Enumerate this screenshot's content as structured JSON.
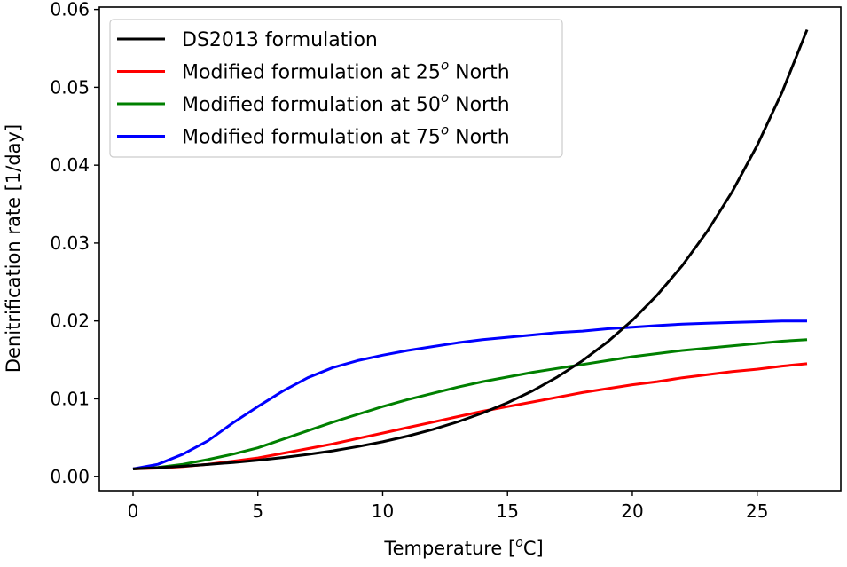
{
  "chart_data": {
    "type": "line",
    "title": "",
    "xlabel": "Temperature [",
    "xlabel_super": "o",
    "xlabel_tail": "C]",
    "ylabel": "Denitrification rate [1/day]",
    "xlim": [
      -1.35,
      28.35
    ],
    "ylim": [
      -0.0018,
      0.0603
    ],
    "xticks": [
      0,
      5,
      10,
      15,
      20,
      25
    ],
    "xtick_labels": [
      "0",
      "5",
      "10",
      "15",
      "20",
      "25"
    ],
    "yticks": [
      0,
      0.01,
      0.02,
      0.03,
      0.04,
      0.05,
      0.06
    ],
    "ytick_labels": [
      "0.00",
      "0.01",
      "0.02",
      "0.03",
      "0.04",
      "0.05",
      "0.06"
    ],
    "grid": false,
    "legend_position": "top-left",
    "x": [
      0,
      1,
      2,
      3,
      4,
      5,
      6,
      7,
      8,
      9,
      10,
      11,
      12,
      13,
      14,
      15,
      16,
      17,
      18,
      19,
      20,
      21,
      22,
      23,
      24,
      25,
      26,
      27
    ],
    "series": [
      {
        "name": "DS2013 formulation",
        "color": "#000000",
        "values": [
          0.001,
          0.00116,
          0.00135,
          0.00157,
          0.00182,
          0.00212,
          0.00246,
          0.00286,
          0.00332,
          0.00386,
          0.00448,
          0.00521,
          0.00605,
          0.00703,
          0.00817,
          0.00949,
          0.01102,
          0.01281,
          0.01488,
          0.01729,
          0.02009,
          0.02334,
          0.02711,
          0.0315,
          0.0366,
          0.04252,
          0.0494,
          0.05739
        ]
      },
      {
        "name": "Modified formulation at 25",
        "name_super": "o",
        "name_tail": " North",
        "color": "#ff0000",
        "values": [
          0.001,
          0.0011,
          0.0013,
          0.0016,
          0.002,
          0.0024,
          0.003,
          0.0036,
          0.0042,
          0.0049,
          0.0056,
          0.0063,
          0.007,
          0.0077,
          0.0084,
          0.009,
          0.0096,
          0.0102,
          0.0108,
          0.0113,
          0.0118,
          0.0122,
          0.0127,
          0.0131,
          0.0135,
          0.0138,
          0.0142,
          0.0145
        ]
      },
      {
        "name": "Modified formulation at 50",
        "name_super": "o",
        "name_tail": " North",
        "color": "#008000",
        "values": [
          0.001,
          0.0012,
          0.0016,
          0.0022,
          0.0029,
          0.0037,
          0.0048,
          0.0059,
          0.007,
          0.008,
          0.009,
          0.0099,
          0.0107,
          0.0115,
          0.0122,
          0.0128,
          0.0134,
          0.0139,
          0.0144,
          0.0149,
          0.0154,
          0.0158,
          0.0162,
          0.0165,
          0.0168,
          0.0171,
          0.0174,
          0.0176
        ]
      },
      {
        "name": "Modified formulation at 75",
        "name_super": "o",
        "name_tail": " North",
        "color": "#0000ff",
        "values": [
          0.001,
          0.0016,
          0.0029,
          0.0046,
          0.0069,
          0.009,
          0.011,
          0.0127,
          0.014,
          0.0149,
          0.0156,
          0.0162,
          0.0167,
          0.0172,
          0.0176,
          0.0179,
          0.0182,
          0.0185,
          0.0187,
          0.019,
          0.0192,
          0.0194,
          0.0196,
          0.0197,
          0.0198,
          0.0199,
          0.02,
          0.02
        ]
      }
    ]
  }
}
